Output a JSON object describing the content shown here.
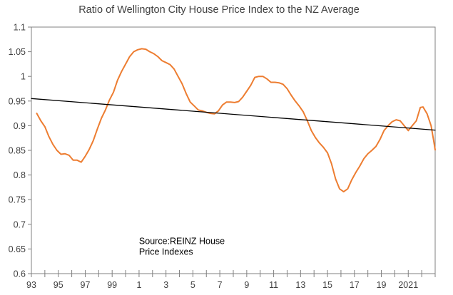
{
  "chart_data": {
    "type": "line",
    "title": "Ratio of Wellington City House Price Index to the NZ Average",
    "xlabel": "",
    "ylabel": "",
    "xlim": [
      1993,
      2023
    ],
    "ylim": [
      0.6,
      1.1
    ],
    "grid": false,
    "x_tick_labels": [
      {
        "x": 1993,
        "label": "93"
      },
      {
        "x": 1995,
        "label": "95"
      },
      {
        "x": 1997,
        "label": "97"
      },
      {
        "x": 1999,
        "label": "99"
      },
      {
        "x": 2001,
        "label": "1"
      },
      {
        "x": 2003,
        "label": "3"
      },
      {
        "x": 2005,
        "label": "5"
      },
      {
        "x": 2007,
        "label": "7"
      },
      {
        "x": 2009,
        "label": "9"
      },
      {
        "x": 2011,
        "label": "11"
      },
      {
        "x": 2013,
        "label": "13"
      },
      {
        "x": 2015,
        "label": "15"
      },
      {
        "x": 2017,
        "label": "17"
      },
      {
        "x": 2019,
        "label": "19"
      },
      {
        "x": 2021,
        "label": "2021"
      }
    ],
    "y_ticks": [
      {
        "v": 0.6,
        "label": "0.6"
      },
      {
        "v": 0.65,
        "label": "0.65"
      },
      {
        "v": 0.7,
        "label": "0.7"
      },
      {
        "v": 0.75,
        "label": "0.75"
      },
      {
        "v": 0.8,
        "label": "0.8"
      },
      {
        "v": 0.85,
        "label": "0.85"
      },
      {
        "v": 0.9,
        "label": "0.9"
      },
      {
        "v": 0.95,
        "label": "0.95"
      },
      {
        "v": 1.0,
        "label": "1"
      },
      {
        "v": 1.05,
        "label": "1.05"
      },
      {
        "v": 1.1,
        "label": "1.1"
      }
    ],
    "series": [
      {
        "name": "Ratio",
        "color": "#ED7D31",
        "points": [
          [
            1993.4,
            0.925
          ],
          [
            1993.7,
            0.91
          ],
          [
            1994.0,
            0.898
          ],
          [
            1994.3,
            0.878
          ],
          [
            1994.6,
            0.862
          ],
          [
            1994.9,
            0.85
          ],
          [
            1995.2,
            0.842
          ],
          [
            1995.5,
            0.843
          ],
          [
            1995.8,
            0.84
          ],
          [
            1996.1,
            0.83
          ],
          [
            1996.4,
            0.83
          ],
          [
            1996.7,
            0.826
          ],
          [
            1997.0,
            0.838
          ],
          [
            1997.3,
            0.852
          ],
          [
            1997.6,
            0.87
          ],
          [
            1997.9,
            0.893
          ],
          [
            1998.2,
            0.915
          ],
          [
            1998.5,
            0.932
          ],
          [
            1998.8,
            0.952
          ],
          [
            1999.1,
            0.968
          ],
          [
            1999.4,
            0.992
          ],
          [
            1999.7,
            1.01
          ],
          [
            2000.0,
            1.025
          ],
          [
            2000.3,
            1.04
          ],
          [
            2000.6,
            1.05
          ],
          [
            2000.9,
            1.054
          ],
          [
            2001.2,
            1.056
          ],
          [
            2001.5,
            1.055
          ],
          [
            2001.8,
            1.05
          ],
          [
            2002.1,
            1.046
          ],
          [
            2002.4,
            1.04
          ],
          [
            2002.7,
            1.032
          ],
          [
            2003.0,
            1.028
          ],
          [
            2003.3,
            1.024
          ],
          [
            2003.6,
            1.015
          ],
          [
            2003.9,
            1.0
          ],
          [
            2004.2,
            0.985
          ],
          [
            2004.5,
            0.965
          ],
          [
            2004.8,
            0.948
          ],
          [
            2005.1,
            0.94
          ],
          [
            2005.4,
            0.932
          ],
          [
            2005.7,
            0.93
          ],
          [
            2006.0,
            0.927
          ],
          [
            2006.3,
            0.925
          ],
          [
            2006.6,
            0.924
          ],
          [
            2006.9,
            0.93
          ],
          [
            2007.2,
            0.942
          ],
          [
            2007.5,
            0.948
          ],
          [
            2007.8,
            0.948
          ],
          [
            2008.1,
            0.947
          ],
          [
            2008.4,
            0.949
          ],
          [
            2008.7,
            0.958
          ],
          [
            2009.0,
            0.97
          ],
          [
            2009.3,
            0.982
          ],
          [
            2009.6,
            0.998
          ],
          [
            2009.9,
            1.0
          ],
          [
            2010.2,
            1.0
          ],
          [
            2010.5,
            0.995
          ],
          [
            2010.8,
            0.988
          ],
          [
            2011.1,
            0.988
          ],
          [
            2011.4,
            0.987
          ],
          [
            2011.7,
            0.984
          ],
          [
            2012.0,
            0.975
          ],
          [
            2012.3,
            0.962
          ],
          [
            2012.6,
            0.95
          ],
          [
            2012.9,
            0.94
          ],
          [
            2013.2,
            0.928
          ],
          [
            2013.5,
            0.91
          ],
          [
            2013.8,
            0.89
          ],
          [
            2014.1,
            0.876
          ],
          [
            2014.4,
            0.865
          ],
          [
            2014.7,
            0.856
          ],
          [
            2015.0,
            0.845
          ],
          [
            2015.3,
            0.823
          ],
          [
            2015.6,
            0.792
          ],
          [
            2015.9,
            0.772
          ],
          [
            2016.2,
            0.766
          ],
          [
            2016.5,
            0.772
          ],
          [
            2016.8,
            0.79
          ],
          [
            2017.1,
            0.805
          ],
          [
            2017.4,
            0.818
          ],
          [
            2017.7,
            0.833
          ],
          [
            2018.0,
            0.843
          ],
          [
            2018.3,
            0.85
          ],
          [
            2018.6,
            0.858
          ],
          [
            2018.9,
            0.872
          ],
          [
            2019.2,
            0.89
          ],
          [
            2019.5,
            0.9
          ],
          [
            2019.8,
            0.908
          ],
          [
            2020.1,
            0.912
          ],
          [
            2020.4,
            0.91
          ],
          [
            2020.7,
            0.9
          ],
          [
            2021.0,
            0.89
          ],
          [
            2021.3,
            0.9
          ],
          [
            2021.6,
            0.91
          ],
          [
            2021.9,
            0.937
          ],
          [
            2022.1,
            0.938
          ],
          [
            2022.4,
            0.924
          ],
          [
            2022.7,
            0.9
          ],
          [
            2022.9,
            0.868
          ],
          [
            2023.0,
            0.851
          ]
        ]
      },
      {
        "name": "Trend",
        "color": "#000000",
        "points": [
          [
            1993.0,
            0.955
          ],
          [
            2023.0,
            0.891
          ]
        ]
      }
    ],
    "annotations": [
      {
        "lines": [
          "Source:REINZ House",
          "Price Indexes"
        ],
        "x": 2001.0,
        "y": 0.66
      }
    ]
  }
}
